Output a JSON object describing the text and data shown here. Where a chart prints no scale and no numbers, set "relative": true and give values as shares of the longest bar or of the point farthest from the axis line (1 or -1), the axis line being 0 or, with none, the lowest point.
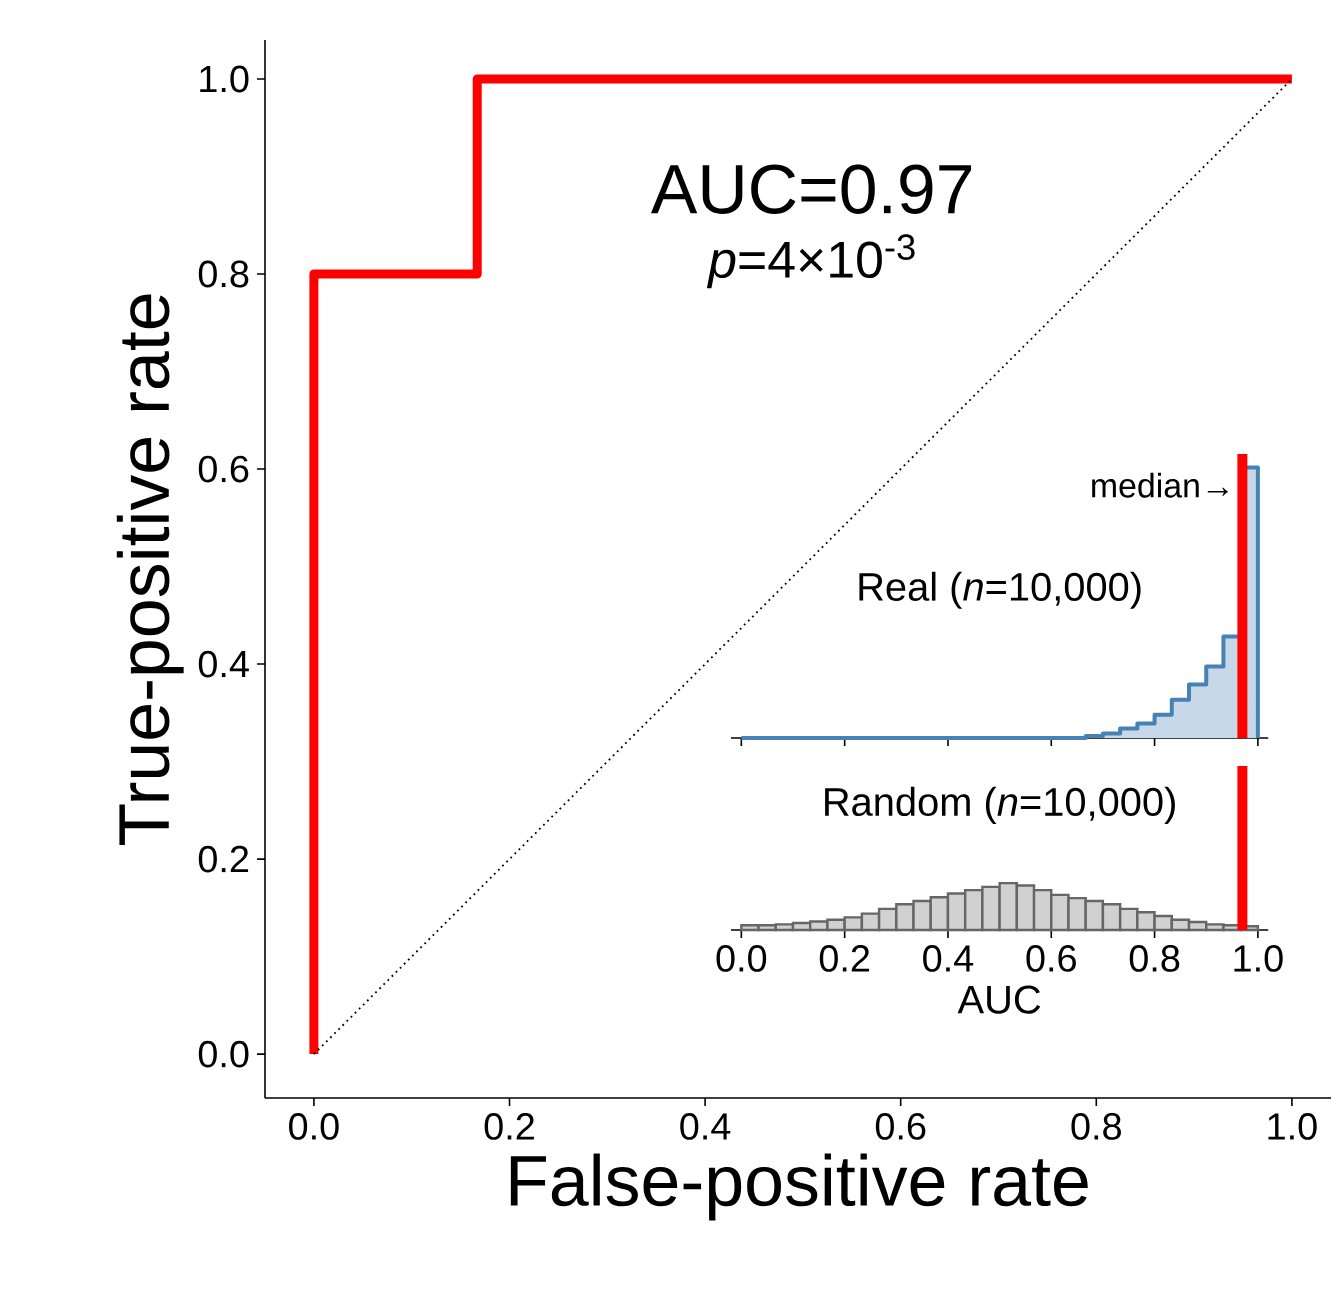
{
  "chart_data": [
    {
      "type": "line",
      "xlabel": "False-positive rate",
      "ylabel": "True-positive rate",
      "xlim": [
        -0.05,
        1.04
      ],
      "ylim": [
        -0.045,
        1.04
      ],
      "xticks": [
        {
          "value": 0,
          "label": "0.0"
        },
        {
          "value": 0.2,
          "label": "0.2"
        },
        {
          "value": 0.4,
          "label": "0.4"
        },
        {
          "value": 0.6,
          "label": "0.6"
        },
        {
          "value": 0.8,
          "label": "0.8"
        },
        {
          "value": 1,
          "label": "1.0"
        }
      ],
      "yticks": [
        {
          "value": 0,
          "label": "0.0"
        },
        {
          "value": 0.2,
          "label": "0.2"
        },
        {
          "value": 0.4,
          "label": "0.4"
        },
        {
          "value": 0.6,
          "label": "0.6"
        },
        {
          "value": 0.8,
          "label": "0.8"
        },
        {
          "value": 1,
          "label": "1.0"
        }
      ],
      "annotations": [
        "AUC=0.97",
        "*p*=4×10$^{-3}$"
      ],
      "series": [
        {
          "color": "#ff0000",
          "line_style": "solid",
          "x": [
            0,
            0,
            0.167,
            0.167,
            1
          ],
          "values": [
            0,
            0.8,
            0.8,
            1,
            1
          ]
        },
        {
          "color": "#000000",
          "line_style": "dotted",
          "x": [
            0,
            1
          ],
          "values": [
            0,
            1
          ]
        }
      ]
    },
    {
      "type": "area",
      "title": "Real (*n*=10,000)",
      "relative": true,
      "color": "#4682b4",
      "x": [
        0,
        0.6667,
        0.6667,
        0.7,
        0.7,
        0.7333,
        0.7333,
        0.7667,
        0.7667,
        0.8,
        0.8,
        0.8333,
        0.8333,
        0.8667,
        0.8667,
        0.9,
        0.9,
        0.9333,
        0.9333,
        0.9667,
        0.9667,
        1.0,
        1.0
      ],
      "values": [
        0,
        0,
        0.007,
        0.007,
        0.017,
        0.017,
        0.035,
        0.035,
        0.054,
        0.054,
        0.086,
        0.086,
        0.141,
        0.141,
        0.198,
        0.198,
        0.264,
        0.264,
        0.375,
        0.375,
        1.0,
        1.0,
        0
      ],
      "xlim": [
        -0.02,
        1.02
      ],
      "xticks": [
        0,
        0.2,
        0.4,
        0.6,
        0.8,
        1.0
      ],
      "tick_labels": false,
      "ref_lines": [
        {
          "axis": "x",
          "value": 0.97,
          "label": "median→",
          "color": "#ff0000"
        }
      ]
    },
    {
      "type": "bar",
      "title": "Random (*n*=10,000)",
      "xlabel": "AUC",
      "relative": true,
      "color": "#666666",
      "x": [
        0.0167,
        0.05,
        0.0833,
        0.1167,
        0.15,
        0.1833,
        0.2167,
        0.25,
        0.2833,
        0.3167,
        0.35,
        0.3833,
        0.4167,
        0.45,
        0.4833,
        0.5167,
        0.55,
        0.5833,
        0.6167,
        0.65,
        0.6833,
        0.7167,
        0.75,
        0.7833,
        0.8167,
        0.85,
        0.8833,
        0.9167,
        0.95,
        0.9833
      ],
      "values": [
        0.1,
        0.1,
        0.12,
        0.15,
        0.18,
        0.22,
        0.27,
        0.35,
        0.45,
        0.55,
        0.62,
        0.7,
        0.78,
        0.85,
        0.92,
        1.0,
        0.95,
        0.85,
        0.75,
        0.68,
        0.62,
        0.55,
        0.45,
        0.38,
        0.3,
        0.22,
        0.17,
        0.12,
        0.1,
        0.08
      ],
      "xlim": [
        -0.02,
        1.02
      ],
      "xticks": [
        {
          "value": 0,
          "label": "0.0"
        },
        {
          "value": 0.2,
          "label": "0.2"
        },
        {
          "value": 0.4,
          "label": "0.4"
        },
        {
          "value": 0.6,
          "label": "0.6"
        },
        {
          "value": 0.8,
          "label": "0.8"
        },
        {
          "value": 1,
          "label": "1.0"
        }
      ],
      "tick_labels": "x",
      "ref_lines": [
        {
          "axis": "x",
          "value": 0.97,
          "color": "#ff0000"
        }
      ]
    }
  ]
}
